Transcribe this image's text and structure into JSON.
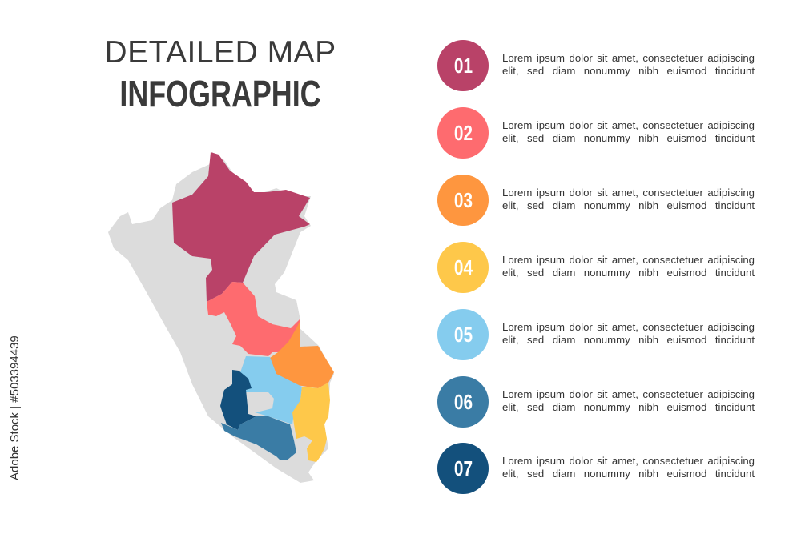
{
  "title": {
    "line1": "DETAILED MAP",
    "line2": "INFOGRAPHIC"
  },
  "colors": {
    "base": "#dcdcdc",
    "region1": "#b94268",
    "region2": "#fe6b6f",
    "region3": "#fe963f",
    "region4": "#fec84a",
    "region5": "#85ccee",
    "region6": "#3a7ca5",
    "region7": "#13507c"
  },
  "items": [
    {
      "number": "01",
      "color": "#b94268",
      "text": "Lorem ipsum dolor sit amet, consectetuer adipiscing elit, sed diam nonummy nibh euismod tincidunt"
    },
    {
      "number": "02",
      "color": "#fe6b6f",
      "text": "Lorem ipsum dolor sit amet, consectetuer adipiscing elit, sed diam nonummy nibh euismod tincidunt"
    },
    {
      "number": "03",
      "color": "#fe963f",
      "text": "Lorem ipsum dolor sit amet, consectetuer adipiscing elit, sed diam nonummy nibh euismod tincidunt"
    },
    {
      "number": "04",
      "color": "#fec84a",
      "text": "Lorem ipsum dolor sit amet, consectetuer adipiscing elit, sed diam nonummy nibh euismod tincidunt"
    },
    {
      "number": "05",
      "color": "#85ccee",
      "text": "Lorem ipsum dolor sit amet, consectetuer adipiscing elit, sed diam nonummy nibh euismod tincidunt"
    },
    {
      "number": "06",
      "color": "#3a7ca5",
      "text": "Lorem ipsum dolor sit amet, consectetuer adipiscing elit, sed diam nonummy nibh euismod tincidunt"
    },
    {
      "number": "07",
      "color": "#13507c",
      "text": "Lorem ipsum dolor sit amet, consectetuer adipiscing elit, sed diam nonummy nibh euismod tincidunt"
    }
  ],
  "watermark": "Adobe Stock | #503394439"
}
